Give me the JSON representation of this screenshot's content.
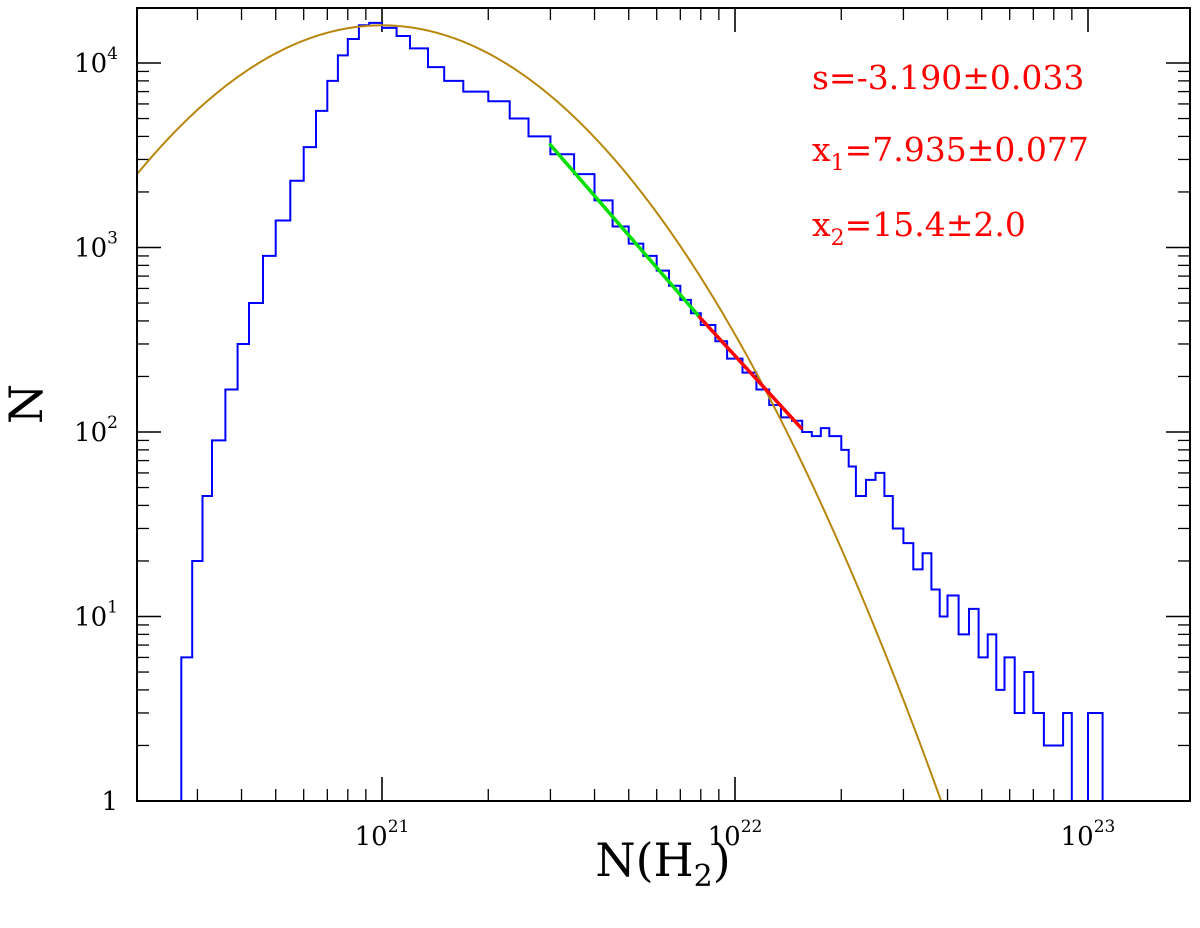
{
  "chart_data": {
    "type": "histogram-loglog",
    "xlabel": "N(H₂)",
    "xlabel_parts": {
      "main": "N(H",
      "sub": "2",
      "close": ")"
    },
    "ylabel": "N",
    "x_scale": "log",
    "y_scale": "log",
    "xlim": [
      2e+20,
      2e+23
    ],
    "ylim": [
      1,
      20000
    ],
    "x_ticks": [
      {
        "value": 1e+21,
        "base": "10",
        "exp": "21"
      },
      {
        "value": 1e+22,
        "base": "10",
        "exp": "22"
      },
      {
        "value": 1e+23,
        "base": "10",
        "exp": "23"
      }
    ],
    "y_ticks": [
      {
        "value": 1,
        "base": "1",
        "exp": ""
      },
      {
        "value": 10,
        "base": "10",
        "exp": "1"
      },
      {
        "value": 100,
        "base": "10",
        "exp": "2"
      },
      {
        "value": 1000,
        "base": "10",
        "exp": "3"
      },
      {
        "value": 10000,
        "base": "10",
        "exp": "4"
      }
    ],
    "series": [
      {
        "name": "histogram",
        "kind": "step",
        "color": "#0000ff",
        "points": [
          [
            2.5e+20,
            1
          ],
          [
            2.7e+20,
            6
          ],
          [
            2.9e+20,
            20
          ],
          [
            3.1e+20,
            45
          ],
          [
            3.3e+20,
            90
          ],
          [
            3.6e+20,
            170
          ],
          [
            3.9e+20,
            300
          ],
          [
            4.2e+20,
            500
          ],
          [
            4.6e+20,
            900
          ],
          [
            5e+20,
            1400
          ],
          [
            5.5e+20,
            2300
          ],
          [
            6e+20,
            3500
          ],
          [
            6.5e+20,
            5500
          ],
          [
            7e+20,
            8000
          ],
          [
            7.5e+20,
            11000
          ],
          [
            8e+20,
            13500
          ],
          [
            8.6e+20,
            16000
          ],
          [
            9.2e+20,
            16500
          ],
          [
            1e+21,
            15500
          ],
          [
            1.1e+21,
            14000
          ],
          [
            1.2e+21,
            12000
          ],
          [
            1.35e+21,
            9500
          ],
          [
            1.5e+21,
            8000
          ],
          [
            1.7e+21,
            7000
          ],
          [
            2e+21,
            6200
          ],
          [
            2.3e+21,
            5000
          ],
          [
            2.6e+21,
            4000
          ],
          [
            3e+21,
            3200
          ],
          [
            3.5e+21,
            2500
          ],
          [
            4e+21,
            1800
          ],
          [
            4.5e+21,
            1300
          ],
          [
            5e+21,
            1050
          ],
          [
            5.5e+21,
            900
          ],
          [
            6e+21,
            750
          ],
          [
            6.5e+21,
            620
          ],
          [
            7e+21,
            520
          ],
          [
            7.5e+21,
            440
          ],
          [
            8e+21,
            380
          ],
          [
            8.8e+21,
            310
          ],
          [
            9.5e+21,
            250
          ],
          [
            1.05e+22,
            210
          ],
          [
            1.15e+22,
            170
          ],
          [
            1.25e+22,
            140
          ],
          [
            1.35e+22,
            120
          ],
          [
            1.45e+22,
            115
          ],
          [
            1.55e+22,
            100
          ],
          [
            1.65e+22,
            95
          ],
          [
            1.75e+22,
            105
          ],
          [
            1.85e+22,
            95
          ],
          [
            2e+22,
            80
          ],
          [
            2.1e+22,
            65
          ],
          [
            2.2e+22,
            45
          ],
          [
            2.35e+22,
            55
          ],
          [
            2.5e+22,
            60
          ],
          [
            2.65e+22,
            45
          ],
          [
            2.8e+22,
            30
          ],
          [
            3e+22,
            25
          ],
          [
            3.2e+22,
            18
          ],
          [
            3.4e+22,
            22
          ],
          [
            3.6e+22,
            14
          ],
          [
            3.8e+22,
            10
          ],
          [
            4e+22,
            13
          ],
          [
            4.3e+22,
            8
          ],
          [
            4.6e+22,
            11
          ],
          [
            4.9e+22,
            6
          ],
          [
            5.2e+22,
            8
          ],
          [
            5.5e+22,
            4
          ],
          [
            5.8e+22,
            6
          ],
          [
            6.2e+22,
            3
          ],
          [
            6.6e+22,
            5
          ],
          [
            7e+22,
            3
          ],
          [
            7.5e+22,
            2
          ],
          [
            8e+22,
            2
          ],
          [
            8.5e+22,
            3
          ],
          [
            9e+22,
            1
          ],
          [
            1e+23,
            3
          ],
          [
            1.1e+23,
            1
          ]
        ]
      },
      {
        "name": "lognormal-fit",
        "kind": "curve",
        "color": "#b8860b",
        "peak_x": 1e+21,
        "peak_y": 16000,
        "sigma_dex": 0.36
      },
      {
        "name": "power-law-fit-green",
        "kind": "line",
        "color": "#00e000",
        "x": [
          3e+21,
          7.935e+21
        ],
        "y": [
          3600,
          420
        ]
      },
      {
        "name": "power-law-fit-red",
        "kind": "line",
        "color": "#ff0000",
        "x": [
          7.935e+21,
          1.54e+22
        ],
        "y": [
          420,
          105
        ]
      }
    ],
    "annotations": [
      {
        "id": "slope",
        "color": "#ff0000",
        "parts": [
          {
            "t": "s=-3.190±0.033"
          }
        ]
      },
      {
        "id": "x1",
        "color": "#ff0000",
        "parts": [
          {
            "t": "x"
          },
          {
            "sub": "1"
          },
          {
            "t": "=7.935±0.077"
          }
        ]
      },
      {
        "id": "x2",
        "color": "#ff0000",
        "parts": [
          {
            "t": "x"
          },
          {
            "sub": "2"
          },
          {
            "t": "=15.4±2.0"
          }
        ]
      }
    ]
  }
}
